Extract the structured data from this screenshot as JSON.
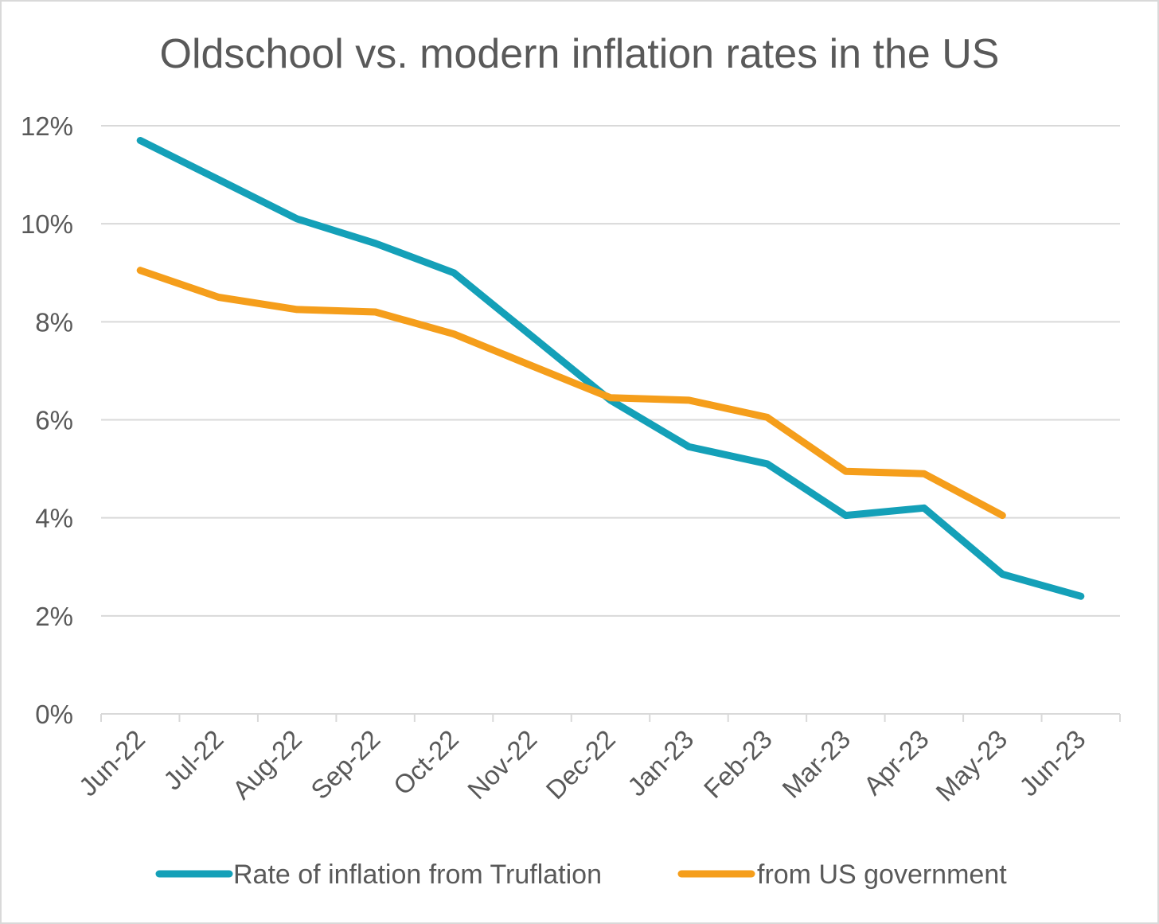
{
  "chart_data": {
    "type": "line",
    "title": "Oldschool vs. modern inflation rates in the US",
    "categories": [
      "Jun-22",
      "Jul-22",
      "Aug-22",
      "Sep-22",
      "Oct-22",
      "Nov-22",
      "Dec-22",
      "Jan-23",
      "Feb-23",
      "Mar-23",
      "Apr-23",
      "May-23",
      "Jun-23"
    ],
    "y_ticks": [
      "0%",
      "2%",
      "4%",
      "6%",
      "8%",
      "10%",
      "12%"
    ],
    "ylim": [
      0,
      12
    ],
    "grid": true,
    "legend_position": "bottom",
    "series": [
      {
        "name": "Rate of inflation from Truflation",
        "color": "#14A0B8",
        "values": [
          11.7,
          10.9,
          10.1,
          9.6,
          9.0,
          7.7,
          6.4,
          5.45,
          5.1,
          4.05,
          4.2,
          2.85,
          2.4
        ]
      },
      {
        "name": "from US government",
        "color": "#F59E1B",
        "values": [
          9.05,
          8.5,
          8.25,
          8.2,
          7.75,
          7.1,
          6.45,
          6.4,
          6.05,
          4.95,
          4.9,
          4.05,
          null
        ]
      }
    ]
  }
}
